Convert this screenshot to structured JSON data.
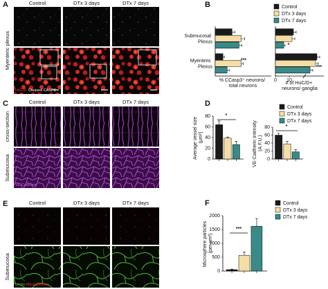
{
  "figure": {
    "panel_a": {
      "letter": "A",
      "columns": [
        "Control",
        "DTx 3 days",
        "DTx 7 days"
      ],
      "row_label": "Myenteric plexus",
      "stains": [
        "HuC/D",
        "Cleaved CASP3"
      ]
    },
    "panel_b": {
      "letter": "B"
    },
    "panel_c": {
      "letter": "C",
      "columns": [
        "Control",
        "DTx 3 days",
        "DTx 7 days"
      ],
      "row_labels": [
        "cross-section",
        "Submucosa"
      ],
      "stain": "VE-Cadherin"
    },
    "panel_d": {
      "letter": "D"
    },
    "panel_e": {
      "letter": "E",
      "columns": [
        "Control",
        "DTx 3 days",
        "DTx 7 days"
      ],
      "row_label": "Submucosa",
      "stains": [
        "Lectin",
        "Microspheres"
      ]
    },
    "panel_f": {
      "letter": "F"
    }
  },
  "chart_data": [
    {
      "type": "bar",
      "orientation": "horizontal",
      "categories": [
        "Submucosal Plexus",
        "Myenteric Plexus"
      ],
      "xlabel": "% CCasp3⁺ neurons/ total neurons",
      "xlim": [
        0,
        80
      ],
      "legend": "top-right",
      "series": [
        {
          "name": "Control",
          "color": "#1a1a1a",
          "values": [
            24,
            11
          ],
          "errors": [
            4,
            2
          ]
        },
        {
          "name": "DTx 3 days",
          "color": "#f5dea6",
          "values": [
            37,
            37
          ],
          "errors": [
            5,
            3
          ]
        },
        {
          "name": "DTx 7 days",
          "color": "#3a8a87",
          "values": [
            34,
            17
          ],
          "errors": [
            4,
            3
          ]
        }
      ],
      "annotations": [
        "***"
      ]
    },
    {
      "type": "bar",
      "orientation": "horizontal",
      "categories": [
        null,
        null
      ],
      "xlabel": "# of HuC/D+ neurons/ ganglia",
      "xlim": [
        0,
        35
      ],
      "xticks": [
        0,
        10
      ],
      "series": [
        {
          "color": "#1a1a1a",
          "values": [
            13,
            30
          ],
          "errors": [
            2,
            2
          ]
        },
        {
          "color": "#f5dea6",
          "values": [
            12,
            29
          ],
          "errors": [
            2,
            2
          ]
        },
        {
          "color": "#3a8a87",
          "values": [
            6,
            25
          ],
          "errors": [
            1,
            2
          ]
        }
      ],
      "annotations": [
        "*",
        "***"
      ]
    },
    {
      "type": "bar",
      "orientation": "vertical",
      "categories": [
        null
      ],
      "ylabel": "Average vessel size (µm²)",
      "ylim": [
        0,
        80
      ],
      "yticks": [
        0,
        20,
        40,
        60,
        80
      ],
      "legend": "top-right",
      "series": [
        {
          "name": "Control",
          "color": "#1a1a1a",
          "values": [
            64
          ],
          "errors": [
            7
          ]
        },
        {
          "name": "DTx 3 days",
          "color": "#f5dea6",
          "values": [
            39
          ],
          "errors": [
            2
          ]
        },
        {
          "name": "DTx 7 days",
          "color": "#3a8a87",
          "values": [
            27
          ],
          "errors": [
            6
          ]
        }
      ],
      "annotations": [
        "*"
      ]
    },
    {
      "type": "bar",
      "orientation": "vertical",
      "categories": [
        null
      ],
      "ylabel": "VE-Cadherin intensity (A.F.U.)",
      "ylim": [
        0,
        80
      ],
      "yticks": [
        0,
        20,
        40,
        60,
        80
      ],
      "series": [
        {
          "color": "#1a1a1a",
          "values": [
            60
          ],
          "errors": [
            5
          ]
        },
        {
          "color": "#f5dea6",
          "values": [
            38
          ],
          "errors": [
            6
          ]
        },
        {
          "color": "#3a8a87",
          "values": [
            18
          ],
          "errors": [
            6
          ]
        }
      ],
      "annotations": [
        "*"
      ]
    },
    {
      "type": "bar",
      "orientation": "vertical",
      "categories": [
        null
      ],
      "ylabel": "Microsphere particles (per µm²)",
      "ylim": [
        0,
        2000
      ],
      "yticks": [
        0,
        500,
        1000,
        1500,
        2000
      ],
      "legend": "top-right",
      "series": [
        {
          "name": "Control",
          "color": "#1a1a1a",
          "values": [
            50
          ],
          "errors": [
            20
          ]
        },
        {
          "name": "DTx 3 days",
          "color": "#f5dea6",
          "values": [
            570
          ],
          "errors": [
            120
          ]
        },
        {
          "name": "DTx 7 days",
          "color": "#3a8a87",
          "values": [
            1620
          ],
          "errors": [
            280
          ]
        }
      ],
      "annotations": [
        "***"
      ]
    }
  ]
}
